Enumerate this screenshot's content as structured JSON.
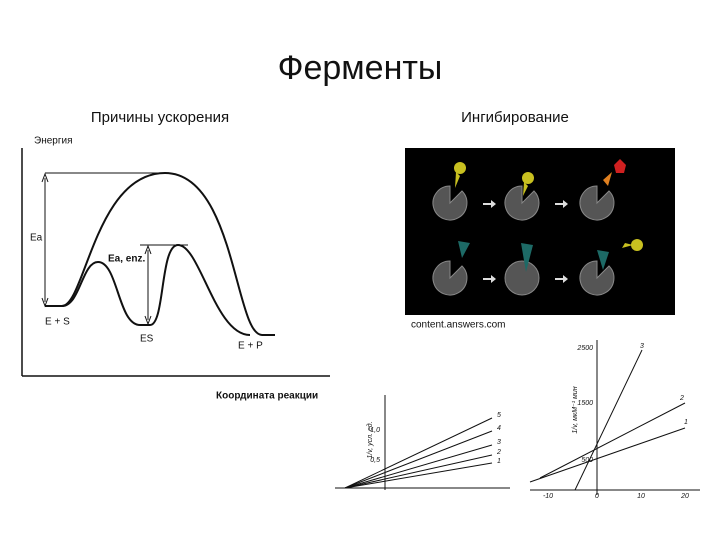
{
  "header": {
    "title": "Ферменты"
  },
  "left": {
    "subtitle": "Причины ускорения",
    "y_label": "Энергия",
    "ea": "Еа",
    "ea_enz": "Еа, enz.",
    "es_label": "E + S",
    "es": "ES",
    "ep": "E + P",
    "x_label": "Координата реакции"
  },
  "right": {
    "subtitle": "Ингибирование",
    "credit": "content.answers.com"
  },
  "plot_a": {
    "y_label": "1/v, усл. ед.",
    "yticks": [
      "1,0",
      "0,5"
    ],
    "line_labels": [
      "5",
      "4",
      "3",
      "2",
      "1"
    ]
  },
  "plot_b": {
    "y_label": "1/v, мкМ⁻¹ мин",
    "yticks": [
      "2500",
      "1500",
      "500"
    ],
    "xticks": [
      "-10",
      "0",
      "10",
      "20"
    ],
    "line_labels": [
      "3",
      "2",
      "1"
    ]
  }
}
